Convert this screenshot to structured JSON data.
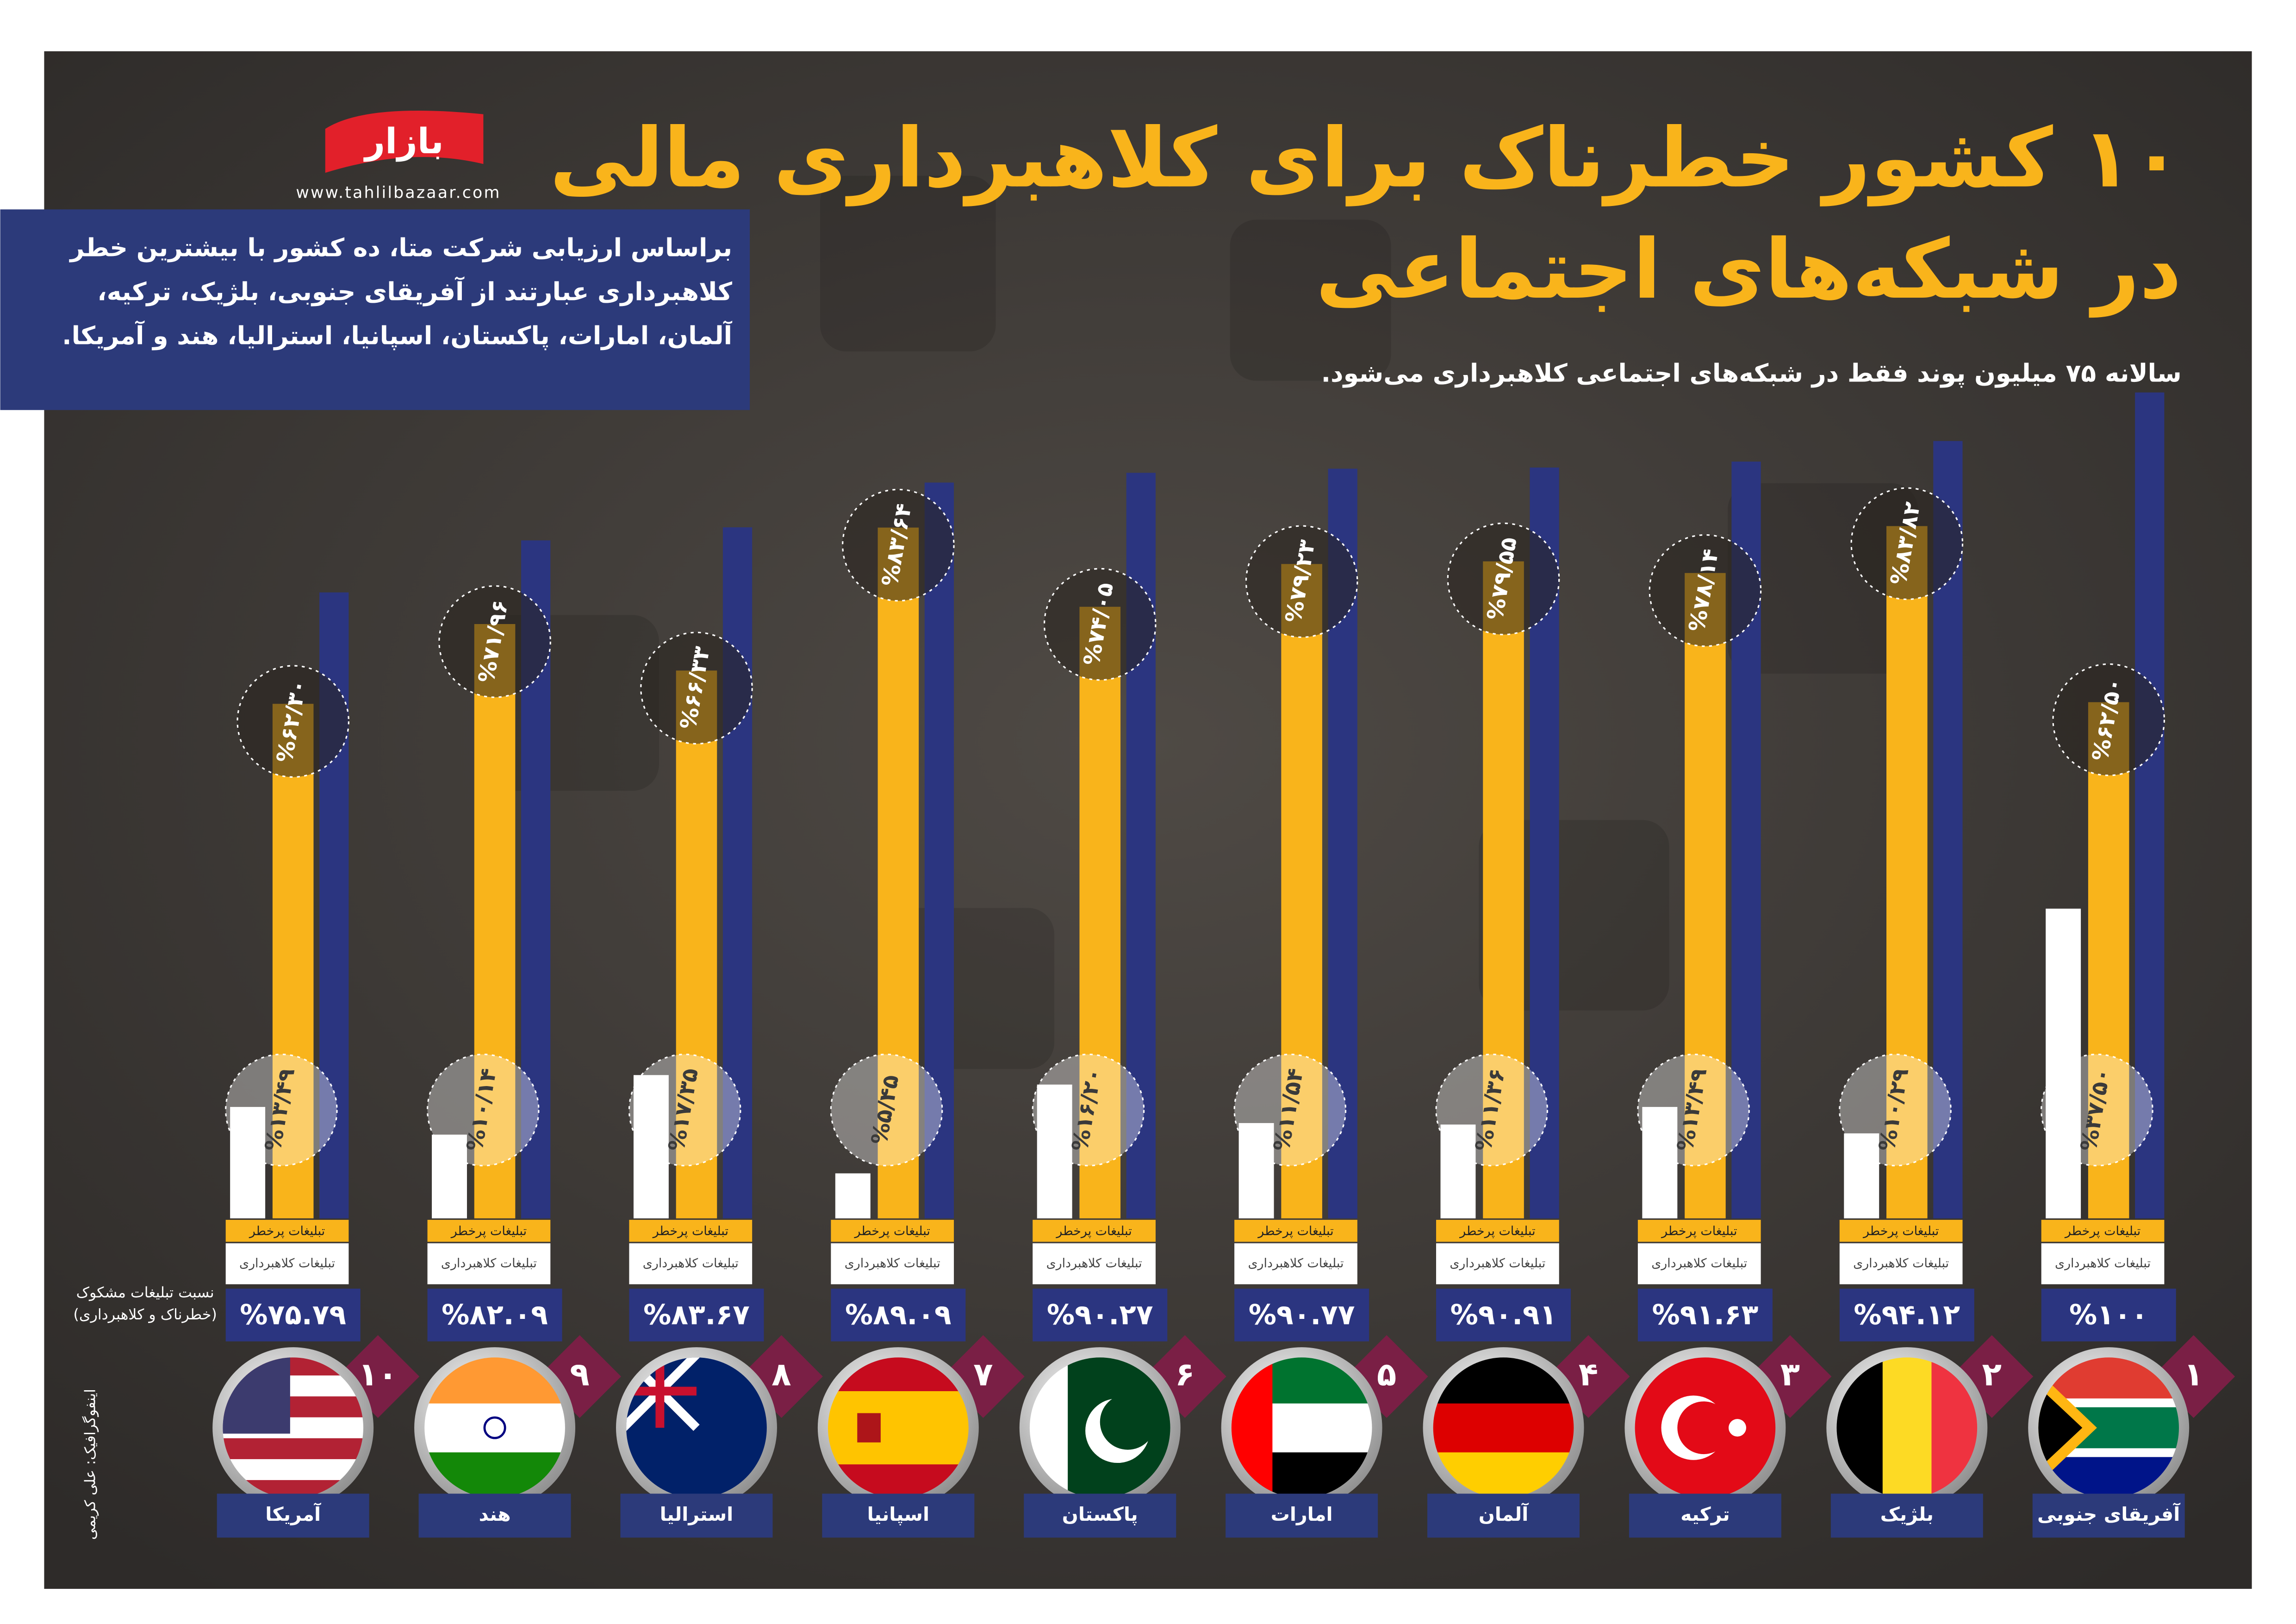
{
  "logo": "بازار",
  "website": "www.tahlilbazaar.com",
  "info": "براساس ارزیابی شرکت متا، ده کشور با بیشترین خطر کلاهبرداری عبارتند از آفریقای جنوبی، بلژیک، ترکیه، آلمان، امارات، پاکستان، اسپانیا، استرالیا، هند و آمریکا.",
  "credit": "اینفوگرافیک: علی کریمی",
  "chart_data": {
    "type": "bar",
    "title": "۱۰ کشور خطرناک برای کلاهبرداری مالی",
    "title_line2": "در شبکه‌های اجتماعی",
    "subtitle": "سالانه ۷۵ میلیون پوند فقط در شبکه‌های اجتماعی کلاهبرداری می‌شود.",
    "categories": [
      "آمریکا",
      "هند",
      "استرالیا",
      "اسپانیا",
      "پاکستان",
      "امارات",
      "آلمان",
      "ترکیه",
      "بلژیک",
      "آفریقای جنوبی"
    ],
    "ranks": [
      "۱۰",
      "۹",
      "۸",
      "۷",
      "۶",
      "۵",
      "۴",
      "۳",
      "۲",
      "۱"
    ],
    "series": [
      {
        "name": "نسبت تبلیغات مشکوک (خطرناک و کلاهبرداری)",
        "color": "#2b3580",
        "values": [
          75.79,
          82.09,
          83.67,
          89.09,
          90.27,
          90.77,
          90.91,
          91.63,
          94.12,
          100
        ],
        "value_labels": [
          "%۷۵.۷۹",
          "%۸۲.۰۹",
          "%۸۳.۶۷",
          "%۸۹.۰۹",
          "%۹۰.۲۷",
          "%۹۰.۷۷",
          "%۹۰.۹۱",
          "%۹۱.۶۳",
          "%۹۴.۱۲",
          "%۱۰۰"
        ]
      },
      {
        "name": "تبلیغات پرخطر",
        "color": "#f9b41b",
        "values": [
          62.3,
          71.96,
          66.33,
          83.64,
          74.05,
          79.23,
          79.55,
          78.14,
          83.82,
          62.5
        ],
        "value_labels": [
          "%۶۲/۳۰",
          "%۷۱/۹۶",
          "%۶۶/۳۳",
          "%۸۳/۶۴",
          "%۷۴/۰۵",
          "%۷۹/۲۳",
          "%۷۹/۵۵",
          "%۷۸/۱۴",
          "%۸۳/۸۲",
          "%۶۲/۵۰"
        ]
      },
      {
        "name": "تبلیغات کلاهبرداری",
        "color": "#ffffff",
        "values": [
          13.49,
          10.14,
          17.35,
          5.45,
          16.2,
          11.54,
          11.36,
          13.49,
          10.29,
          37.5
        ],
        "value_labels": [
          "%۱۳/۴۹",
          "%۱۰/۱۴",
          "%۱۷/۳۵",
          "%۵/۴۵",
          "%۱۶/۲۰",
          "%۱۱/۵۴",
          "%۱۱/۳۶",
          "%۱۳/۴۹",
          "%۱۰/۲۹",
          "%۳۷/۵۰"
        ]
      }
    ]
  }
}
